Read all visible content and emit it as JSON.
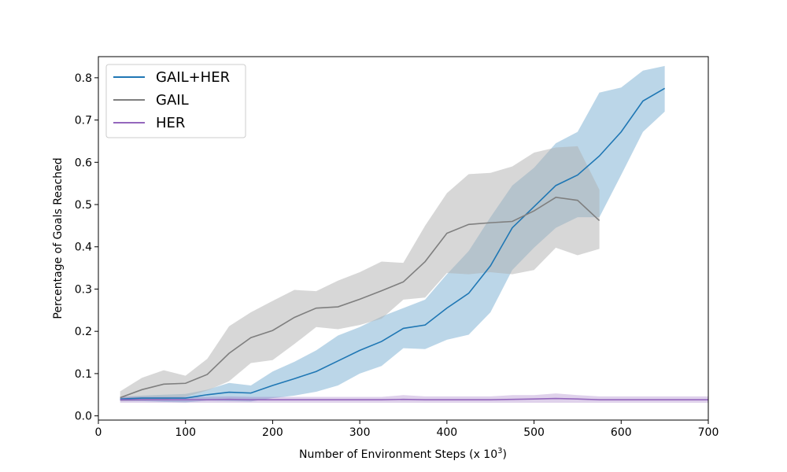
{
  "chart_data": {
    "type": "line",
    "xlabel": "Number of Environment Steps (x 10",
    "xlabel_sup": "3",
    "xlabel_close": ")",
    "ylabel": "Percentage of Goals Reached",
    "xlim": [
      0,
      700
    ],
    "ylim": [
      -0.01,
      0.85
    ],
    "xticks": [
      0,
      100,
      200,
      300,
      400,
      500,
      600,
      700
    ],
    "xtick_labels": [
      "0",
      "100",
      "200",
      "300",
      "400",
      "500",
      "600",
      "700"
    ],
    "yticks": [
      0.0,
      0.1,
      0.2,
      0.3,
      0.4,
      0.5,
      0.6,
      0.7,
      0.8
    ],
    "ytick_labels": [
      "0.0",
      "0.1",
      "0.2",
      "0.3",
      "0.4",
      "0.5",
      "0.6",
      "0.7",
      "0.8"
    ],
    "grid": false,
    "legend_position": "top-left",
    "series": [
      {
        "name": "GAIL+HER",
        "color": "#1f77b4",
        "band_color": "#1f77b4",
        "x": [
          25,
          50,
          75,
          100,
          125,
          150,
          175,
          200,
          225,
          250,
          275,
          300,
          325,
          350,
          375,
          400,
          425,
          450,
          475,
          500,
          525,
          550,
          575,
          600,
          625,
          650
        ],
        "y": [
          0.04,
          0.042,
          0.042,
          0.042,
          0.05,
          0.056,
          0.054,
          0.072,
          0.088,
          0.105,
          0.13,
          0.155,
          0.176,
          0.207,
          0.215,
          0.255,
          0.29,
          0.355,
          0.445,
          0.495,
          0.545,
          0.57,
          0.615,
          0.672,
          0.745,
          0.775
        ],
        "lower": [
          0.035,
          0.035,
          0.033,
          0.032,
          0.036,
          0.035,
          0.034,
          0.042,
          0.048,
          0.057,
          0.072,
          0.1,
          0.118,
          0.16,
          0.158,
          0.18,
          0.192,
          0.245,
          0.345,
          0.398,
          0.445,
          0.47,
          0.47,
          0.57,
          0.672,
          0.72
        ],
        "upper": [
          0.045,
          0.048,
          0.05,
          0.052,
          0.062,
          0.078,
          0.072,
          0.105,
          0.128,
          0.155,
          0.19,
          0.21,
          0.235,
          0.255,
          0.275,
          0.335,
          0.39,
          0.47,
          0.545,
          0.587,
          0.645,
          0.672,
          0.765,
          0.777,
          0.817,
          0.828
        ]
      },
      {
        "name": "GAIL",
        "color": "#7f7f7f",
        "band_color": "#b0b0b0",
        "x": [
          25,
          50,
          75,
          100,
          125,
          150,
          175,
          200,
          225,
          250,
          275,
          300,
          325,
          350,
          375,
          400,
          425,
          450,
          475,
          500,
          525,
          550,
          575
        ],
        "y": [
          0.043,
          0.062,
          0.075,
          0.077,
          0.098,
          0.148,
          0.185,
          0.202,
          0.233,
          0.255,
          0.258,
          0.276,
          0.296,
          0.317,
          0.365,
          0.432,
          0.453,
          0.457,
          0.46,
          0.485,
          0.517,
          0.51,
          0.462
        ],
        "lower": [
          0.035,
          0.036,
          0.038,
          0.045,
          0.06,
          0.082,
          0.125,
          0.132,
          0.17,
          0.21,
          0.205,
          0.215,
          0.23,
          0.275,
          0.28,
          0.338,
          0.335,
          0.34,
          0.335,
          0.345,
          0.398,
          0.38,
          0.395
        ],
        "upper": [
          0.058,
          0.09,
          0.108,
          0.095,
          0.135,
          0.212,
          0.245,
          0.272,
          0.298,
          0.295,
          0.32,
          0.34,
          0.365,
          0.362,
          0.45,
          0.527,
          0.572,
          0.575,
          0.59,
          0.623,
          0.635,
          0.638,
          0.535
        ]
      },
      {
        "name": "HER",
        "color": "#9467bd",
        "band_color": "#9467bd",
        "x": [
          25,
          50,
          75,
          100,
          125,
          150,
          175,
          200,
          225,
          250,
          275,
          300,
          325,
          350,
          375,
          400,
          425,
          450,
          475,
          500,
          525,
          550,
          575,
          600,
          625,
          650,
          675,
          700
        ],
        "y": [
          0.038,
          0.038,
          0.038,
          0.038,
          0.038,
          0.039,
          0.038,
          0.038,
          0.038,
          0.038,
          0.038,
          0.038,
          0.038,
          0.039,
          0.038,
          0.038,
          0.038,
          0.038,
          0.039,
          0.04,
          0.041,
          0.04,
          0.038,
          0.038,
          0.038,
          0.038,
          0.038,
          0.038
        ],
        "lower": [
          0.031,
          0.031,
          0.031,
          0.031,
          0.031,
          0.031,
          0.031,
          0.031,
          0.031,
          0.031,
          0.031,
          0.031,
          0.031,
          0.031,
          0.031,
          0.031,
          0.031,
          0.031,
          0.031,
          0.031,
          0.031,
          0.031,
          0.031,
          0.031,
          0.031,
          0.031,
          0.031,
          0.031
        ],
        "upper": [
          0.045,
          0.045,
          0.045,
          0.045,
          0.045,
          0.046,
          0.045,
          0.045,
          0.045,
          0.045,
          0.045,
          0.045,
          0.045,
          0.049,
          0.046,
          0.046,
          0.046,
          0.046,
          0.049,
          0.049,
          0.053,
          0.049,
          0.046,
          0.046,
          0.046,
          0.046,
          0.046,
          0.046
        ]
      }
    ]
  }
}
